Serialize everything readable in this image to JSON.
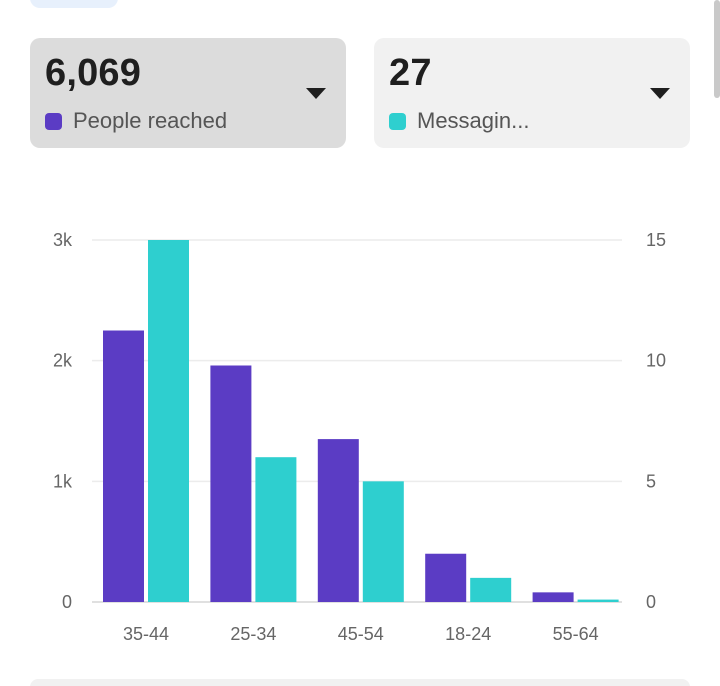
{
  "cards": [
    {
      "value": "6,069",
      "label": "People reached",
      "color": "#5b3cc4",
      "selected": true
    },
    {
      "value": "27",
      "label": "Messagin...",
      "color": "#2ecfcf",
      "selected": false
    }
  ],
  "chart_data": {
    "type": "bar",
    "categories": [
      "35-44",
      "25-34",
      "45-54",
      "18-24",
      "55-64"
    ],
    "series": [
      {
        "values": [
          2250,
          1960,
          1350,
          400,
          80
        ],
        "color": "#5b3cc4",
        "axis": "left"
      },
      {
        "values": [
          15,
          6,
          5,
          1,
          0.1
        ],
        "color": "#2ecfcf",
        "axis": "right"
      }
    ],
    "left_axis": {
      "ticks": [
        0,
        1000,
        2000,
        3000
      ],
      "tick_labels": [
        "0",
        "1k",
        "2k",
        "3k"
      ],
      "ylim": [
        0,
        3000
      ]
    },
    "right_axis": {
      "ticks": [
        0,
        5,
        10,
        15
      ],
      "tick_labels": [
        "0",
        "5",
        "10",
        "15"
      ],
      "ylim": [
        0,
        15
      ]
    },
    "grid": true,
    "legend": "none"
  }
}
